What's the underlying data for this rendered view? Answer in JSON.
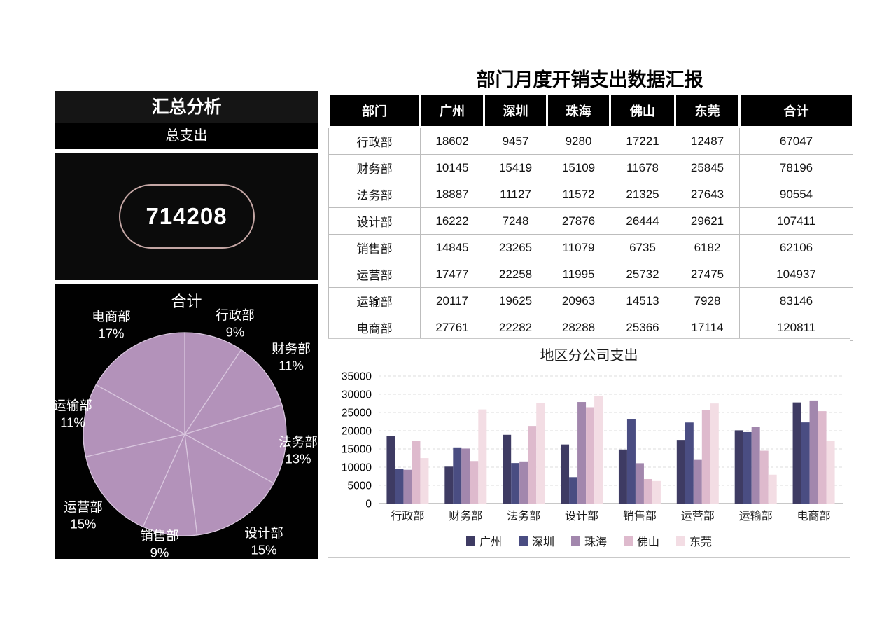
{
  "summary_panel": {
    "title": "汇总分析",
    "subtitle": "总支出",
    "total_value": "714208",
    "pie": {
      "title": "合计",
      "color": "#b392ba",
      "divider_color": "#d9c6de",
      "slices": [
        {
          "label": "行政部",
          "pct_label": "9%",
          "value": 67047
        },
        {
          "label": "财务部",
          "pct_label": "11%",
          "value": 78196
        },
        {
          "label": "法务部",
          "pct_label": "13%",
          "value": 90554
        },
        {
          "label": "设计部",
          "pct_label": "15%",
          "value": 107411
        },
        {
          "label": "销售部",
          "pct_label": "9%",
          "value": 62106
        },
        {
          "label": "运营部",
          "pct_label": "15%",
          "value": 104937
        },
        {
          "label": "运输部",
          "pct_label": "11%",
          "value": 83146
        },
        {
          "label": "电商部",
          "pct_label": "17%",
          "value": 120811
        }
      ]
    }
  },
  "report": {
    "title": "部门月度开销支出数据汇报",
    "table": {
      "headers": [
        "部门",
        "广州",
        "深圳",
        "珠海",
        "佛山",
        "东莞",
        "合计"
      ],
      "rows": [
        [
          "行政部",
          18602,
          9457,
          9280,
          17221,
          12487,
          67047
        ],
        [
          "财务部",
          10145,
          15419,
          15109,
          11678,
          25845,
          78196
        ],
        [
          "法务部",
          18887,
          11127,
          11572,
          21325,
          27643,
          90554
        ],
        [
          "设计部",
          16222,
          7248,
          27876,
          26444,
          29621,
          107411
        ],
        [
          "销售部",
          14845,
          23265,
          11079,
          6735,
          6182,
          62106
        ],
        [
          "运营部",
          17477,
          22258,
          11995,
          25732,
          27475,
          104937
        ],
        [
          "运输部",
          20117,
          19625,
          20963,
          14513,
          7928,
          83146
        ],
        [
          "电商部",
          27761,
          22282,
          28288,
          25366,
          17114,
          120811
        ]
      ]
    }
  },
  "chart_data": {
    "type": "bar",
    "title": "地区分公司支出",
    "categories": [
      "行政部",
      "财务部",
      "法务部",
      "设计部",
      "销售部",
      "运营部",
      "运输部",
      "电商部"
    ],
    "series": [
      {
        "name": "广州",
        "color": "#3e3b63",
        "values": [
          18602,
          10145,
          18887,
          16222,
          14845,
          17477,
          20117,
          27761
        ]
      },
      {
        "name": "深圳",
        "color": "#4a4d82",
        "values": [
          9457,
          15419,
          11127,
          7248,
          23265,
          22258,
          19625,
          22282
        ]
      },
      {
        "name": "珠海",
        "color": "#a287ad",
        "values": [
          9280,
          15109,
          11572,
          27876,
          11079,
          11995,
          20963,
          28288
        ]
      },
      {
        "name": "佛山",
        "color": "#debacd",
        "values": [
          17221,
          11678,
          21325,
          26444,
          6735,
          25732,
          14513,
          25366
        ]
      },
      {
        "name": "东莞",
        "color": "#f3dde4",
        "values": [
          12487,
          25845,
          27643,
          29621,
          6182,
          27475,
          7928,
          17114
        ]
      }
    ],
    "ylim": [
      0,
      35000
    ],
    "ytick_step": 5000,
    "grid": "dashed",
    "legend_position": "bottom"
  }
}
